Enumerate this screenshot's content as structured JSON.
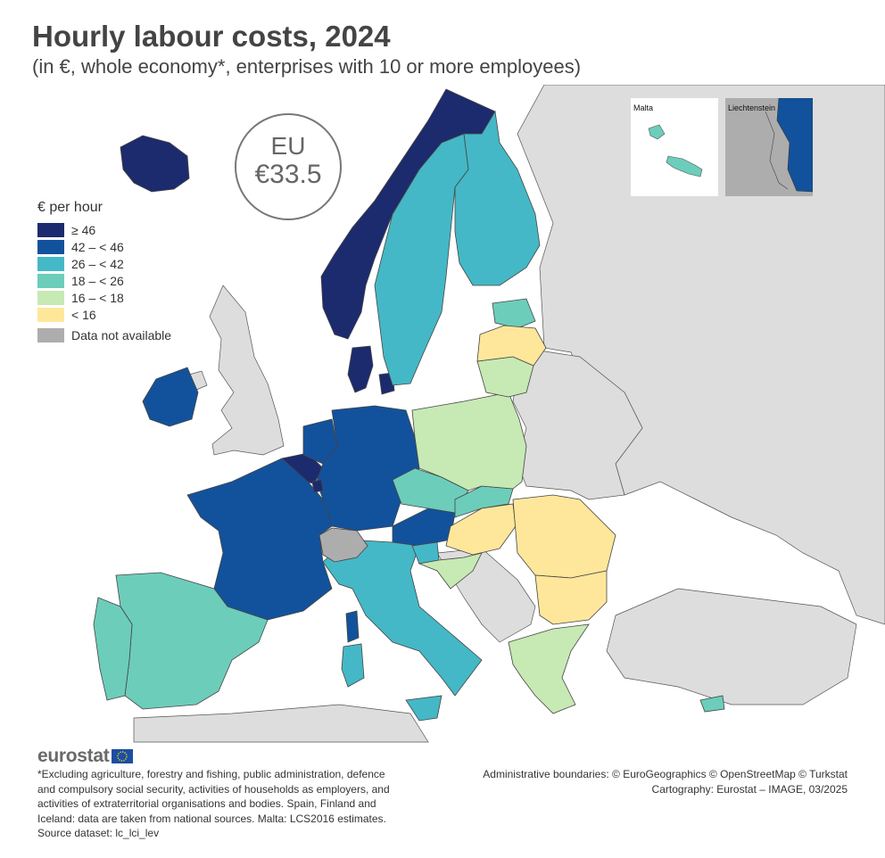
{
  "header": {
    "title": "Hourly labour costs, 2024",
    "subtitle": "(in €, whole economy*, enterprises with 10 or more employees)"
  },
  "eu_average": {
    "line1": "EU",
    "line2": "€33.5"
  },
  "legend": {
    "title": "€ per hour",
    "classes": [
      {
        "label": "≥ 46",
        "color": "#1c2b6e"
      },
      {
        "label": "42 – < 46",
        "color": "#12529c"
      },
      {
        "label": "26 – < 42",
        "color": "#44b8c6"
      },
      {
        "label": "18 – < 26",
        "color": "#6ccdbb"
      },
      {
        "label": "16 – < 18",
        "color": "#c7e9b4"
      },
      {
        "label": "< 16",
        "color": "#fee79a"
      }
    ],
    "not_available": {
      "label": "Data not available",
      "color": "#adadad"
    }
  },
  "insets": {
    "malta": "Malta",
    "liechtenstein": "Liechtenstein"
  },
  "map_colors": {
    "background_land": "#dddddd",
    "sea": "#ffffff",
    "border": "#555555"
  },
  "countries": [
    {
      "name": "Iceland",
      "class": "≥ 46"
    },
    {
      "name": "Norway",
      "class": "≥ 46"
    },
    {
      "name": "Denmark",
      "class": "≥ 46"
    },
    {
      "name": "Luxembourg",
      "class": "≥ 46"
    },
    {
      "name": "Belgium",
      "class": "≥ 46"
    },
    {
      "name": "Ireland",
      "class": "42 – < 46"
    },
    {
      "name": "Germany",
      "class": "42 – < 46"
    },
    {
      "name": "Netherlands",
      "class": "42 – < 46"
    },
    {
      "name": "France",
      "class": "42 – < 46"
    },
    {
      "name": "Austria",
      "class": "42 – < 46"
    },
    {
      "name": "Sweden",
      "class": "26 – < 42"
    },
    {
      "name": "Finland",
      "class": "26 – < 42"
    },
    {
      "name": "Italy",
      "class": "26 – < 42"
    },
    {
      "name": "Slovenia",
      "class": "26 – < 42"
    },
    {
      "name": "Spain",
      "class": "18 – < 26"
    },
    {
      "name": "Portugal",
      "class": "18 – < 26"
    },
    {
      "name": "Czechia",
      "class": "18 – < 26"
    },
    {
      "name": "Slovakia",
      "class": "18 – < 26"
    },
    {
      "name": "Estonia",
      "class": "18 – < 26"
    },
    {
      "name": "Cyprus",
      "class": "18 – < 26"
    },
    {
      "name": "Malta",
      "class": "18 – < 26"
    },
    {
      "name": "Poland",
      "class": "16 – < 18"
    },
    {
      "name": "Lithuania",
      "class": "16 – < 18"
    },
    {
      "name": "Croatia",
      "class": "16 – < 18"
    },
    {
      "name": "Greece",
      "class": "16 – < 18"
    },
    {
      "name": "Latvia",
      "class": "< 16"
    },
    {
      "name": "Hungary",
      "class": "< 16"
    },
    {
      "name": "Romania",
      "class": "< 16"
    },
    {
      "name": "Bulgaria",
      "class": "< 16"
    },
    {
      "name": "Switzerland",
      "class": "Data not available"
    }
  ],
  "logo": {
    "text": "eurostat"
  },
  "footnote": {
    "lines": [
      "*Excluding agriculture, forestry and fishing, public administration, defence",
      "and compulsory social security, activities of households as employers, and",
      "activities of extraterritorial organisations and bodies. Spain, Finland and",
      "Iceland: data are taken from national sources. Malta: LCS2016 estimates.",
      "Source dataset: lc_lci_lev"
    ]
  },
  "credits": {
    "lines": [
      "Administrative boundaries: © EuroGeographics © OpenStreetMap © Turkstat",
      "Cartography: Eurostat – IMAGE, 03/2025"
    ]
  }
}
